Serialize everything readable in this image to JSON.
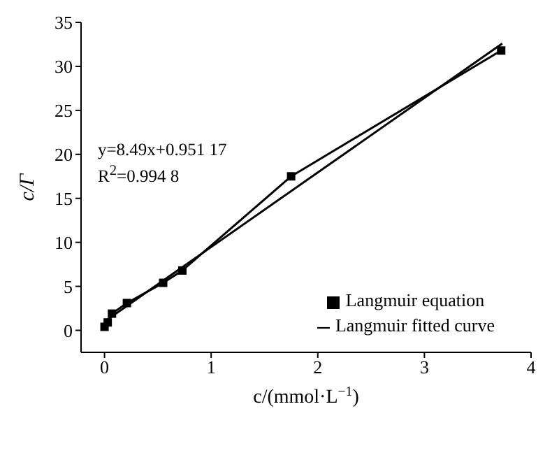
{
  "chart_data": {
    "type": "line",
    "xlabel": "c/(mmol·L$^{−1}$)",
    "ylabel": "c/Γ",
    "annotations": [
      "y=8.49x+0.951 17",
      "R$^{2}$=0.994 8"
    ],
    "series": [
      {
        "name": "Langmuir equation",
        "marker": "square",
        "color": "#000000",
        "x": [
          0.0,
          0.03,
          0.07,
          0.21,
          0.55,
          0.73,
          1.75,
          3.72
        ],
        "values": [
          0.4,
          0.9,
          1.9,
          3.1,
          5.4,
          6.8,
          17.5,
          31.8
        ]
      },
      {
        "name": "Langmuir fitted curve",
        "marker": "none",
        "color": "#000000",
        "x": [
          0,
          3.73
        ],
        "values": [
          1,
          32.6
        ]
      }
    ],
    "xlim": [
      -0.22,
      4
    ],
    "xticks": [
      0,
      1,
      2,
      3,
      4
    ],
    "ylim": [
      -2.5,
      35
    ],
    "yticks": [
      0,
      5,
      10,
      15,
      20,
      25,
      30,
      35
    ],
    "grid": false,
    "legend": "bottom right"
  }
}
